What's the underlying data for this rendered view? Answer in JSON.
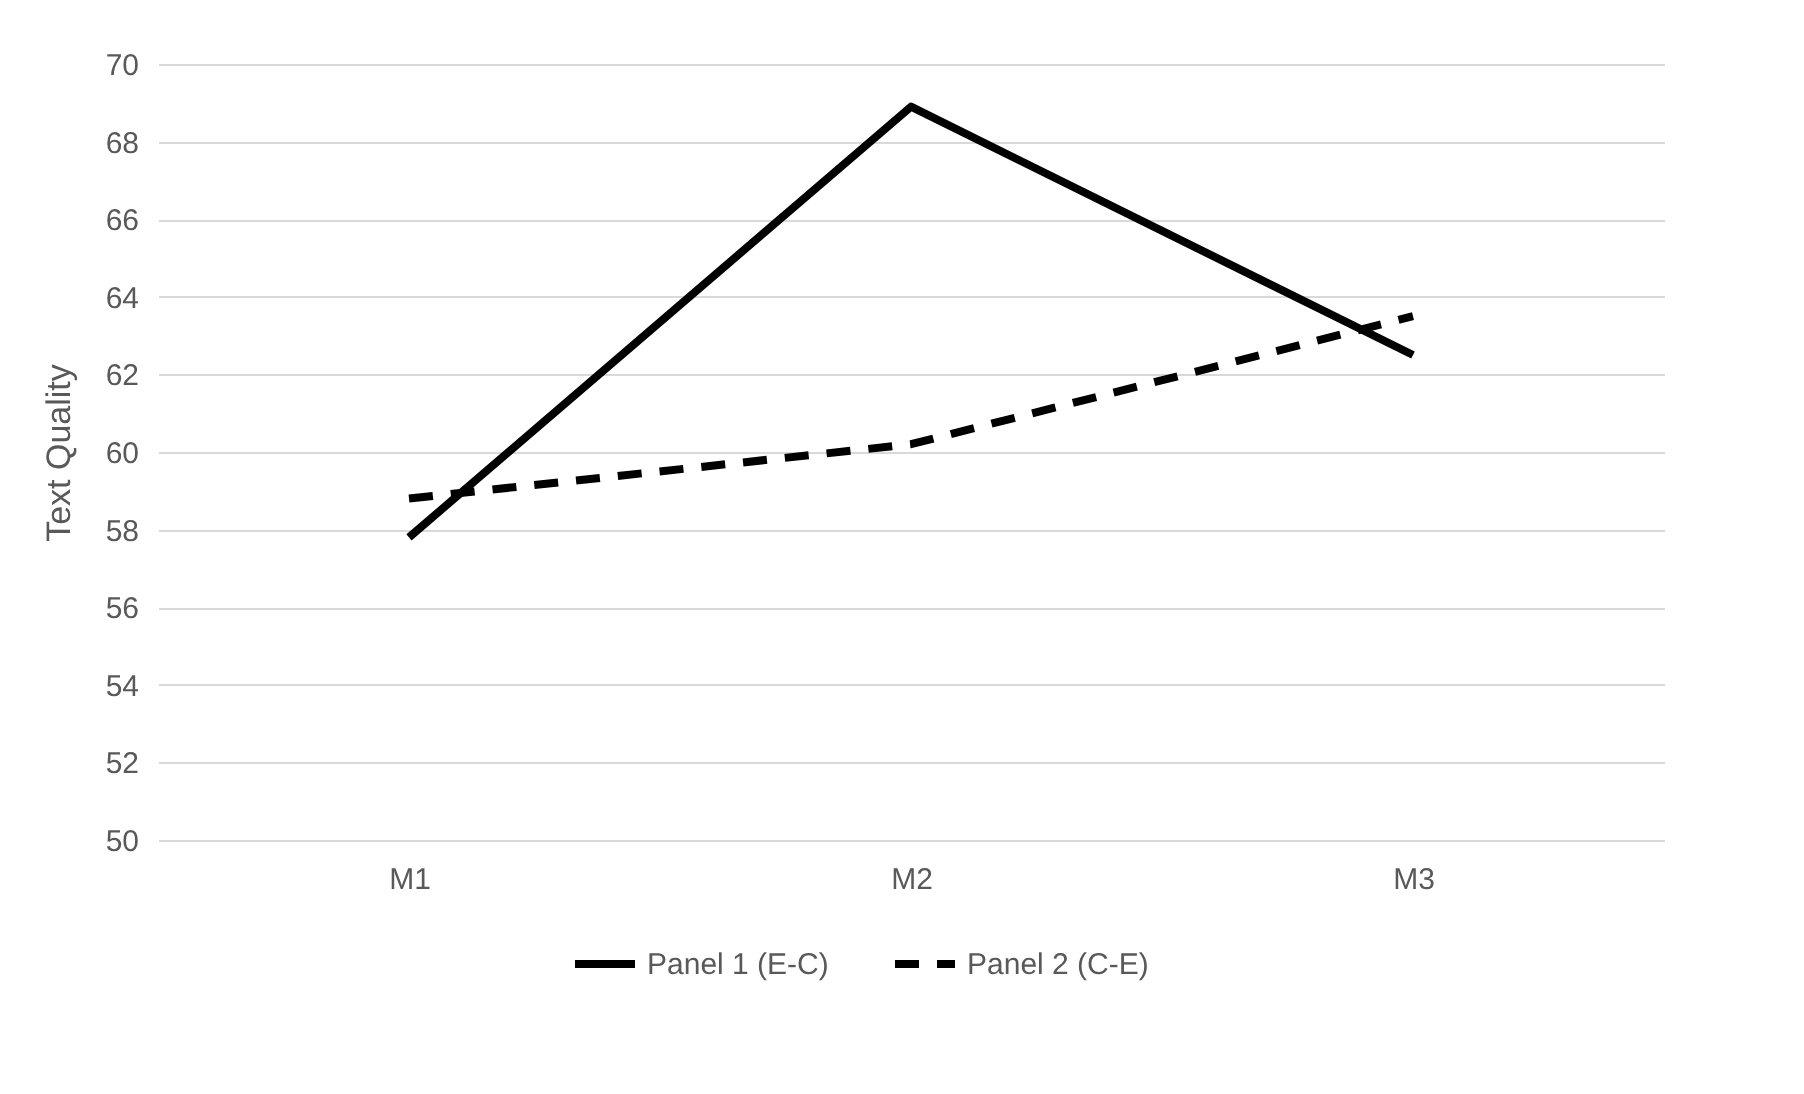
{
  "chart_data": {
    "type": "line",
    "ylabel": "Text Quality",
    "categories": [
      "M1",
      "M2",
      "M3"
    ],
    "series": [
      {
        "name": "Panel 1 (E-C)",
        "color": "#000000",
        "values": [
          57.8,
          68.9,
          62.5
        ],
        "line_style": "solid"
      },
      {
        "name": "Panel 2 (C-E)",
        "color": "#000000",
        "values": [
          58.8,
          60.2,
          63.5
        ],
        "line_style": "dashed"
      }
    ],
    "ylim": [
      50,
      70
    ],
    "yticks": [
      50,
      52,
      54,
      56,
      58,
      60,
      62,
      64,
      66,
      68,
      70
    ],
    "grid": "y",
    "legend": "bottom",
    "marker": "none"
  }
}
